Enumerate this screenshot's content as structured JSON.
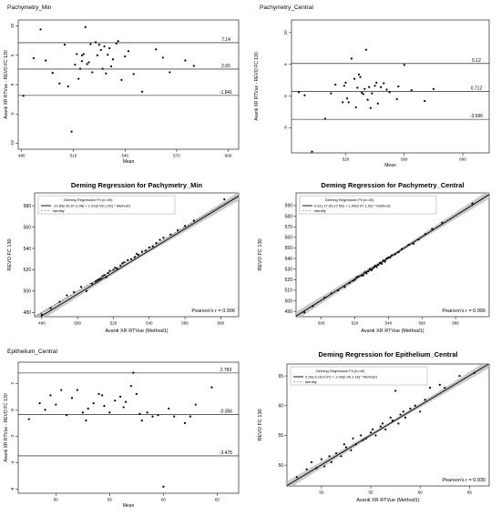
{
  "chart_data": [
    {
      "type": "scatter",
      "variant": "bland-altman",
      "title": "Pachymetry_Min",
      "xlabel": "Mean",
      "ylabel": "Avanti XR RTVue - REVO FC 130",
      "xlim": [
        478,
        606
      ],
      "ylim": [
        -11,
        11
      ],
      "xticks": [
        480,
        510,
        540,
        570,
        600
      ],
      "yticks": [
        -10,
        -5,
        0,
        5,
        10
      ],
      "hlines": [
        {
          "value": 7.14,
          "label": "7.14"
        },
        {
          "value": 2.65,
          "label": "2.65"
        },
        {
          "value": -1.841,
          "label": "-1.841"
        }
      ],
      "x": [
        481,
        487,
        491,
        494,
        498,
        502,
        505,
        507,
        509,
        511,
        512,
        513,
        514,
        515,
        515,
        516,
        517,
        518,
        519,
        520,
        521,
        523,
        524,
        525,
        526,
        527,
        528,
        529,
        530,
        531,
        532,
        533,
        535,
        536,
        538,
        540,
        542,
        545,
        550,
        558,
        562,
        566,
        575,
        580
      ],
      "y": [
        -1.9,
        4.5,
        9.4,
        4.1,
        2.0,
        0.2,
        6.8,
        -0.3,
        -8.0,
        3.4,
        5.2,
        1.0,
        2.7,
        5.0,
        4.0,
        5.2,
        9.8,
        3.5,
        3.8,
        6.9,
        2.1,
        7.2,
        5.0,
        6.8,
        5.9,
        2.7,
        6.5,
        1.9,
        5.1,
        6.2,
        3.1,
        4.3,
        7.0,
        7.4,
        0.8,
        4.8,
        5.7,
        1.8,
        -1.2,
        6.0,
        4.6,
        2.1,
        4.1,
        3.2
      ],
      "grid": false,
      "legend": "none"
    },
    {
      "type": "scatter",
      "variant": "bland-altman",
      "title": "Pachymetry_Central",
      "xlabel": "Mean",
      "ylabel": "Avanti XR RTVue - REVO FC 130",
      "xlim": [
        483,
        618
      ],
      "ylim": [
        -9,
        12
      ],
      "xticks": [
        520,
        560,
        600
      ],
      "yticks": [
        -5,
        0,
        5,
        10
      ],
      "hlines": [
        {
          "value": 5.12,
          "label": "5.12"
        },
        {
          "value": 0.712,
          "label": "0.712"
        },
        {
          "value": -3.696,
          "label": "-3.696"
        }
      ],
      "x": [
        488,
        492,
        497,
        506,
        510,
        513,
        518,
        519,
        520,
        521,
        522,
        524,
        526,
        527,
        528,
        529,
        530,
        531,
        532,
        533,
        534,
        535,
        536,
        537,
        538,
        540,
        541,
        542,
        544,
        546,
        548,
        550,
        555,
        556,
        560,
        565,
        574,
        580
      ],
      "y": [
        0.6,
        0.1,
        -8.8,
        -3.6,
        0.4,
        1.8,
        -1.0,
        1.6,
        2.1,
        -0.4,
        -1.0,
        5.9,
        2.7,
        -1.8,
        1.3,
        3.4,
        3.0,
        0.5,
        0.3,
        1.1,
        7.3,
        -0.6,
        1.4,
        -1.9,
        0.4,
        1.6,
        2.1,
        -1.2,
        1.4,
        2.0,
        1.0,
        0.6,
        -0.5,
        1.5,
        4.9,
        0.9,
        -0.8,
        1.1
      ],
      "grid": false,
      "legend": "none"
    },
    {
      "type": "scatter",
      "variant": "deming-regression",
      "title": "Deming Regression for  Pachymetry_Min",
      "xlabel": "Avanti XR RTVue (Method1)",
      "ylabel": "REVO FC 130",
      "xlim": [
        476,
        590
      ],
      "ylim": [
        476,
        592
      ],
      "xticks": [
        480,
        500,
        520,
        540,
        560,
        580
      ],
      "yticks": [
        480,
        500,
        520,
        540,
        560,
        580
      ],
      "fit": {
        "intercept": -12.85,
        "slope": 1.02
      },
      "legend": {
        "title": "Deming Regression Fit (n=40)",
        "fit_label": "-12.85(-26.67,3.98) + 1.02(0.99,1.05) * Method1",
        "identity_label": "identity",
        "placement": "top-left"
      },
      "annotation": "Pearson's r = 0.996",
      "x": [
        480,
        485,
        490,
        494,
        498,
        502,
        505,
        508,
        510,
        511,
        512,
        513,
        514,
        515,
        516,
        517,
        518,
        520,
        521,
        522,
        524,
        525,
        526,
        528,
        530,
        532,
        533,
        534,
        536,
        538,
        540,
        542,
        544,
        546,
        548,
        552,
        556,
        560,
        565,
        582
      ],
      "y": [
        478,
        484,
        490,
        496,
        499,
        504,
        500,
        507,
        509,
        510,
        511,
        512,
        514,
        515,
        513,
        517,
        519,
        520,
        522,
        521,
        524,
        526,
        527,
        529,
        530,
        532,
        535,
        534,
        537,
        538,
        541,
        542,
        545,
        548,
        550,
        553,
        557,
        561,
        566,
        586
      ],
      "grid": false
    },
    {
      "type": "scatter",
      "variant": "deming-regression",
      "title": "Deming Regression for  Pachymetry_Central",
      "xlabel": "Avanti XR RTVue (Method1)",
      "ylabel": "REVO FC 130",
      "xlim": [
        485,
        600
      ],
      "ylim": [
        485,
        602
      ],
      "xticks": [
        500,
        520,
        540,
        560,
        580
      ],
      "yticks": [
        490,
        500,
        510,
        520,
        530,
        540,
        550,
        560,
        570,
        580,
        590
      ],
      "fit": {
        "intercept": 0.61,
        "slope": 1.0
      },
      "legend": {
        "title": "Deming Regression Fit (n=40)",
        "fit_label": "0.61(-17.95,17.66) + 1.00(0.97,1.03) * Method1",
        "identity_label": "identity",
        "placement": "top-left"
      },
      "annotation": "Pearson's r = 0.996",
      "x": [
        490,
        495,
        502,
        506,
        510,
        514,
        517,
        519,
        520,
        521,
        522,
        524,
        525,
        526,
        527,
        528,
        529,
        530,
        531,
        532,
        533,
        534,
        535,
        536,
        537,
        538,
        539,
        540,
        541,
        542,
        544,
        546,
        548,
        552,
        555,
        558,
        562,
        566,
        572,
        590
      ],
      "y": [
        489,
        495,
        503,
        507,
        510,
        513,
        517,
        519,
        520,
        522,
        523,
        524,
        524,
        527,
        526,
        528,
        530,
        529,
        531,
        533,
        532,
        534,
        536,
        535,
        538,
        537,
        540,
        541,
        541,
        543,
        544,
        546,
        549,
        553,
        554,
        558,
        563,
        568,
        574,
        592
      ],
      "grid": false
    },
    {
      "type": "scatter",
      "variant": "bland-altman",
      "title": "Epithelium_Central",
      "xlabel": "Mean",
      "ylabel": "Avanti XR RTVue - REVO FC 130",
      "xlim": [
        46.5,
        67
      ],
      "ylim": [
        -6.3,
        3.6
      ],
      "xticks": [
        50,
        55,
        60,
        65
      ],
      "yticks": [
        -6,
        -4,
        -2,
        0,
        2
      ],
      "hlines": [
        {
          "value": 2.783,
          "label": "2.783"
        },
        {
          "value": -0.356,
          "label": "-0.356"
        },
        {
          "value": -3.475,
          "label": "-3.475"
        }
      ],
      "x": [
        47.5,
        48.5,
        49.0,
        49.5,
        50.0,
        50.5,
        51.0,
        51.5,
        52.0,
        52.5,
        52.8,
        53.0,
        53.5,
        54.0,
        54.3,
        54.5,
        55.0,
        55.5,
        56.0,
        56.3,
        56.5,
        57.0,
        57.2,
        57.5,
        57.8,
        58.0,
        58.5,
        59.0,
        59.5,
        60.0,
        60.5,
        61.0,
        62.0,
        62.5,
        63.0,
        64.5
      ],
      "y": [
        -0.7,
        0.5,
        0.0,
        1.1,
        0.4,
        1.5,
        -0.4,
        0.9,
        1.5,
        -0.2,
        -0.8,
        0.1,
        0.5,
        1.2,
        1.1,
        0.3,
        -0.2,
        0.7,
        1.0,
        0.2,
        0.6,
        1.8,
        2.8,
        1.2,
        -0.3,
        -0.8,
        -0.2,
        -0.5,
        -0.4,
        -5.8,
        0.1,
        -0.5,
        -1.0,
        -0.5,
        0.4,
        1.7
      ],
      "grid": false,
      "legend": "none"
    },
    {
      "type": "scatter",
      "variant": "deming-regression",
      "title": "Deming Regression for  Epithelium_Central",
      "xlabel": "Avanti XR RTVue (Method1)",
      "ylabel": "REVO FC 130",
      "xlim": [
        46.5,
        67
      ],
      "ylim": [
        46.5,
        67
      ],
      "xticks": [
        50,
        55,
        60,
        65
      ],
      "yticks": [
        50,
        55,
        60,
        65
      ],
      "fit": {
        "intercept": 0.06,
        "slope": 1.0
      },
      "legend": {
        "title": "Deming Regression Fit (n=40)",
        "fit_label": "0.06(-6.16,6.07) + 1.00(0.90,1.16) * Method1",
        "identity_label": "identity",
        "placement": "top-left"
      },
      "annotation": "Pearson's r = 0.930",
      "x": [
        47.5,
        48.5,
        49.0,
        49.5,
        50.0,
        50.3,
        50.8,
        51.0,
        51.5,
        52.0,
        52.3,
        52.5,
        53.0,
        53.2,
        53.5,
        54.0,
        54.2,
        54.5,
        55.0,
        55.2,
        55.5,
        56.0,
        56.2,
        56.5,
        57.0,
        57.2,
        57.5,
        57.8,
        58.0,
        58.3,
        58.5,
        59.0,
        59.5,
        60.0,
        60.5,
        61.0,
        62.0,
        62.5,
        64.0,
        65.5
      ],
      "y": [
        48.0,
        49.3,
        50.5,
        49.5,
        51.0,
        49.8,
        51.5,
        50.5,
        52.0,
        51.5,
        53.5,
        53.0,
        52.5,
        54.5,
        53.5,
        55.0,
        54.2,
        54.5,
        55.5,
        56.0,
        55.0,
        56.5,
        57.0,
        56.0,
        58.0,
        57.5,
        62.5,
        57.0,
        58.5,
        59.0,
        58.0,
        59.5,
        60.0,
        59.0,
        61.0,
        63.0,
        63.5,
        63.0,
        65.0,
        65.5
      ],
      "grid": false
    }
  ]
}
